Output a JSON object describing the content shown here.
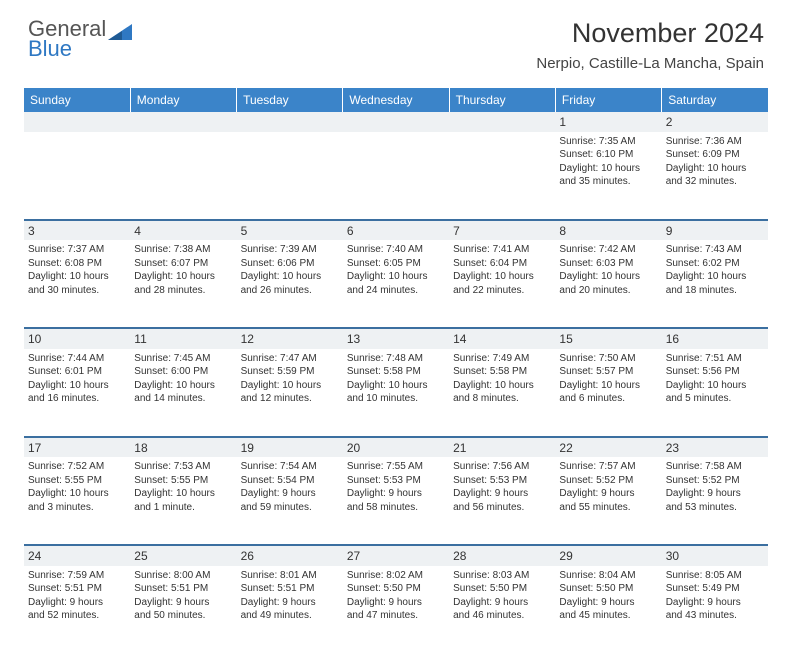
{
  "logo": {
    "general": "General",
    "blue": "Blue"
  },
  "title": "November 2024",
  "location": "Nerpio, Castille-La Mancha, Spain",
  "colors": {
    "header_bg": "#3b84c9",
    "header_text": "#ffffff",
    "border": "#3b6fa0",
    "daynum_bg": "#eef1f3",
    "text": "#333333",
    "logo_blue": "#2f78c3"
  },
  "days": [
    "Sunday",
    "Monday",
    "Tuesday",
    "Wednesday",
    "Thursday",
    "Friday",
    "Saturday"
  ],
  "weeks": [
    [
      null,
      null,
      null,
      null,
      null,
      {
        "n": "1",
        "sr": "Sunrise: 7:35 AM",
        "ss": "Sunset: 6:10 PM",
        "dl1": "Daylight: 10 hours",
        "dl2": "and 35 minutes."
      },
      {
        "n": "2",
        "sr": "Sunrise: 7:36 AM",
        "ss": "Sunset: 6:09 PM",
        "dl1": "Daylight: 10 hours",
        "dl2": "and 32 minutes."
      }
    ],
    [
      {
        "n": "3",
        "sr": "Sunrise: 7:37 AM",
        "ss": "Sunset: 6:08 PM",
        "dl1": "Daylight: 10 hours",
        "dl2": "and 30 minutes."
      },
      {
        "n": "4",
        "sr": "Sunrise: 7:38 AM",
        "ss": "Sunset: 6:07 PM",
        "dl1": "Daylight: 10 hours",
        "dl2": "and 28 minutes."
      },
      {
        "n": "5",
        "sr": "Sunrise: 7:39 AM",
        "ss": "Sunset: 6:06 PM",
        "dl1": "Daylight: 10 hours",
        "dl2": "and 26 minutes."
      },
      {
        "n": "6",
        "sr": "Sunrise: 7:40 AM",
        "ss": "Sunset: 6:05 PM",
        "dl1": "Daylight: 10 hours",
        "dl2": "and 24 minutes."
      },
      {
        "n": "7",
        "sr": "Sunrise: 7:41 AM",
        "ss": "Sunset: 6:04 PM",
        "dl1": "Daylight: 10 hours",
        "dl2": "and 22 minutes."
      },
      {
        "n": "8",
        "sr": "Sunrise: 7:42 AM",
        "ss": "Sunset: 6:03 PM",
        "dl1": "Daylight: 10 hours",
        "dl2": "and 20 minutes."
      },
      {
        "n": "9",
        "sr": "Sunrise: 7:43 AM",
        "ss": "Sunset: 6:02 PM",
        "dl1": "Daylight: 10 hours",
        "dl2": "and 18 minutes."
      }
    ],
    [
      {
        "n": "10",
        "sr": "Sunrise: 7:44 AM",
        "ss": "Sunset: 6:01 PM",
        "dl1": "Daylight: 10 hours",
        "dl2": "and 16 minutes."
      },
      {
        "n": "11",
        "sr": "Sunrise: 7:45 AM",
        "ss": "Sunset: 6:00 PM",
        "dl1": "Daylight: 10 hours",
        "dl2": "and 14 minutes."
      },
      {
        "n": "12",
        "sr": "Sunrise: 7:47 AM",
        "ss": "Sunset: 5:59 PM",
        "dl1": "Daylight: 10 hours",
        "dl2": "and 12 minutes."
      },
      {
        "n": "13",
        "sr": "Sunrise: 7:48 AM",
        "ss": "Sunset: 5:58 PM",
        "dl1": "Daylight: 10 hours",
        "dl2": "and 10 minutes."
      },
      {
        "n": "14",
        "sr": "Sunrise: 7:49 AM",
        "ss": "Sunset: 5:58 PM",
        "dl1": "Daylight: 10 hours",
        "dl2": "and 8 minutes."
      },
      {
        "n": "15",
        "sr": "Sunrise: 7:50 AM",
        "ss": "Sunset: 5:57 PM",
        "dl1": "Daylight: 10 hours",
        "dl2": "and 6 minutes."
      },
      {
        "n": "16",
        "sr": "Sunrise: 7:51 AM",
        "ss": "Sunset: 5:56 PM",
        "dl1": "Daylight: 10 hours",
        "dl2": "and 5 minutes."
      }
    ],
    [
      {
        "n": "17",
        "sr": "Sunrise: 7:52 AM",
        "ss": "Sunset: 5:55 PM",
        "dl1": "Daylight: 10 hours",
        "dl2": "and 3 minutes."
      },
      {
        "n": "18",
        "sr": "Sunrise: 7:53 AM",
        "ss": "Sunset: 5:55 PM",
        "dl1": "Daylight: 10 hours",
        "dl2": "and 1 minute."
      },
      {
        "n": "19",
        "sr": "Sunrise: 7:54 AM",
        "ss": "Sunset: 5:54 PM",
        "dl1": "Daylight: 9 hours",
        "dl2": "and 59 minutes."
      },
      {
        "n": "20",
        "sr": "Sunrise: 7:55 AM",
        "ss": "Sunset: 5:53 PM",
        "dl1": "Daylight: 9 hours",
        "dl2": "and 58 minutes."
      },
      {
        "n": "21",
        "sr": "Sunrise: 7:56 AM",
        "ss": "Sunset: 5:53 PM",
        "dl1": "Daylight: 9 hours",
        "dl2": "and 56 minutes."
      },
      {
        "n": "22",
        "sr": "Sunrise: 7:57 AM",
        "ss": "Sunset: 5:52 PM",
        "dl1": "Daylight: 9 hours",
        "dl2": "and 55 minutes."
      },
      {
        "n": "23",
        "sr": "Sunrise: 7:58 AM",
        "ss": "Sunset: 5:52 PM",
        "dl1": "Daylight: 9 hours",
        "dl2": "and 53 minutes."
      }
    ],
    [
      {
        "n": "24",
        "sr": "Sunrise: 7:59 AM",
        "ss": "Sunset: 5:51 PM",
        "dl1": "Daylight: 9 hours",
        "dl2": "and 52 minutes."
      },
      {
        "n": "25",
        "sr": "Sunrise: 8:00 AM",
        "ss": "Sunset: 5:51 PM",
        "dl1": "Daylight: 9 hours",
        "dl2": "and 50 minutes."
      },
      {
        "n": "26",
        "sr": "Sunrise: 8:01 AM",
        "ss": "Sunset: 5:51 PM",
        "dl1": "Daylight: 9 hours",
        "dl2": "and 49 minutes."
      },
      {
        "n": "27",
        "sr": "Sunrise: 8:02 AM",
        "ss": "Sunset: 5:50 PM",
        "dl1": "Daylight: 9 hours",
        "dl2": "and 47 minutes."
      },
      {
        "n": "28",
        "sr": "Sunrise: 8:03 AM",
        "ss": "Sunset: 5:50 PM",
        "dl1": "Daylight: 9 hours",
        "dl2": "and 46 minutes."
      },
      {
        "n": "29",
        "sr": "Sunrise: 8:04 AM",
        "ss": "Sunset: 5:50 PM",
        "dl1": "Daylight: 9 hours",
        "dl2": "and 45 minutes."
      },
      {
        "n": "30",
        "sr": "Sunrise: 8:05 AM",
        "ss": "Sunset: 5:49 PM",
        "dl1": "Daylight: 9 hours",
        "dl2": "and 43 minutes."
      }
    ]
  ]
}
